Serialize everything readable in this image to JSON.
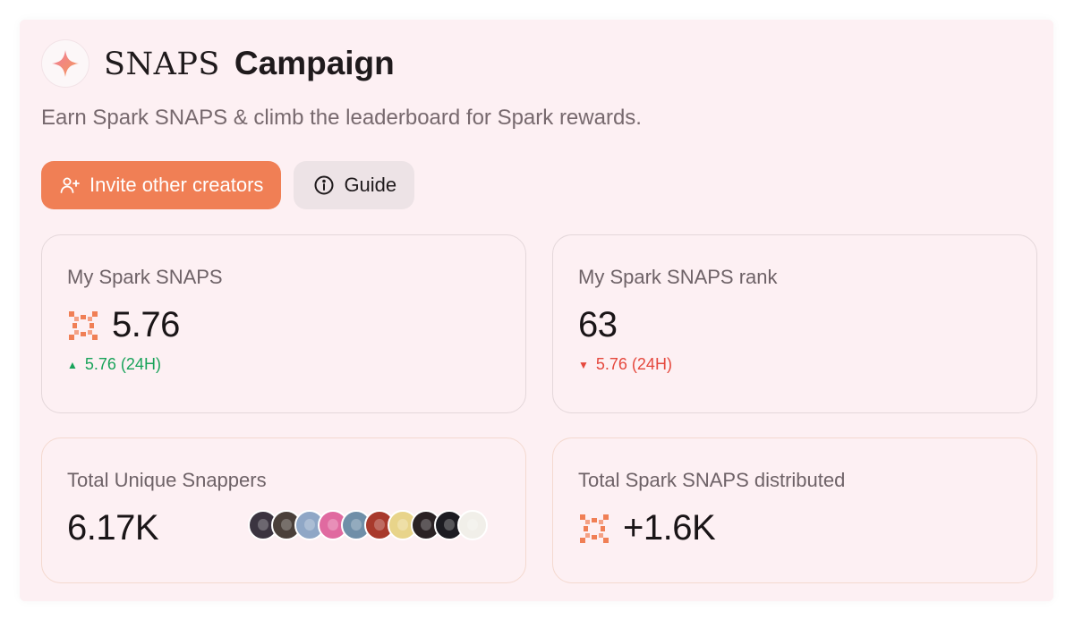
{
  "header": {
    "brand": "SNAPS",
    "name": "Campaign",
    "subtitle": "Earn Spark SNAPS & climb the leaderboard for Spark rewards.",
    "logo_icon": "sparkle-icon"
  },
  "actions": {
    "invite_label": "Invite other creators",
    "invite_icon": "user-plus-icon",
    "guide_label": "Guide",
    "guide_icon": "info-icon"
  },
  "stats": {
    "my_snaps": {
      "label": "My Spark SNAPS",
      "value": "5.76",
      "delta": "5.76 (24H)",
      "direction": "up",
      "icon": "snaps-pixel-icon"
    },
    "my_rank": {
      "label": "My Spark SNAPS rank",
      "value": "63",
      "delta": "5.76 (24H)",
      "direction": "down"
    },
    "unique_snappers": {
      "label": "Total Unique Snappers",
      "value": "6.17K",
      "avatar_count": 10
    },
    "distributed": {
      "label": "Total Spark SNAPS distributed",
      "value": "+1.6K",
      "icon": "snaps-pixel-icon"
    }
  },
  "colors": {
    "accent": "#f07f55",
    "up": "#19a35a",
    "down": "#e5483d",
    "panel": "#fdf0f3"
  }
}
